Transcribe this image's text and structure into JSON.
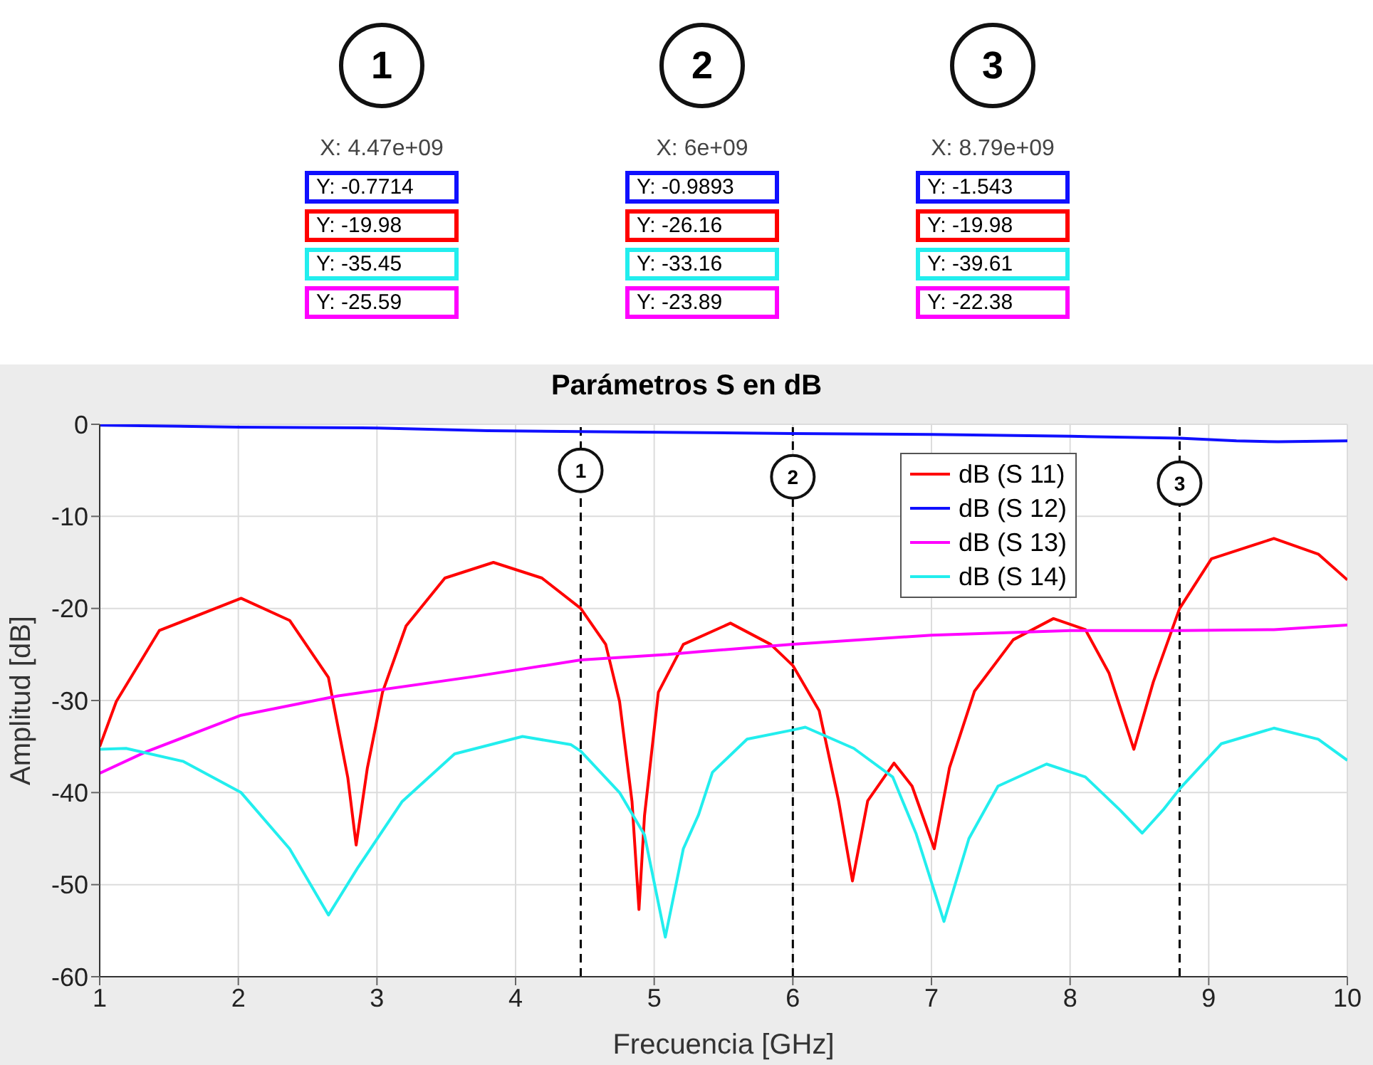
{
  "chart_data": {
    "type": "line",
    "title": "Parámetros S en dB",
    "xlabel": "Frecuencia [GHz]",
    "ylabel": "Amplitud [dB]",
    "xlim": [
      1,
      10
    ],
    "xticks": [
      1,
      2,
      3,
      4,
      5,
      6,
      7,
      8,
      9,
      10
    ],
    "ylim": [
      -60,
      0
    ],
    "yticks": [
      -60,
      -50,
      -40,
      -30,
      -20,
      -10,
      0
    ],
    "grid": true,
    "legend": "top right",
    "marker": "none",
    "line_style": "solid",
    "ref_lines": [
      {
        "axis": "x",
        "value": 4.47,
        "color": "#000000",
        "line_style": "dashed"
      },
      {
        "axis": "x",
        "value": 6,
        "color": "#000000",
        "line_style": "dashed"
      },
      {
        "axis": "x",
        "value": 8.79,
        "color": "#000000",
        "line_style": "dashed"
      }
    ],
    "annotations": [
      {
        "text": "1",
        "x": 4.47,
        "y": -5
      },
      {
        "text": "2",
        "x": 6,
        "y": -5.7
      },
      {
        "text": "3",
        "x": 8.79,
        "y": -6.4
      },
      "1",
      "X: 4.47e+09",
      "Y: -0.7714",
      "Y: -19.98",
      "Y: -35.45",
      "Y: -25.59",
      "2",
      "X: 6e+09",
      "Y: -0.9893",
      "Y: -26.16",
      "Y: -33.16",
      "Y: -23.89",
      "3",
      "X: 8.79e+09",
      "Y: -1.543",
      "Y: -19.98",
      "Y: -39.61",
      "Y: -22.38"
    ],
    "series": [
      {
        "name": "dB (S 11)",
        "color": "#ff0000",
        "x": [
          1,
          1.12,
          1.43,
          2.02,
          2.37,
          2.65,
          2.79,
          2.85,
          2.93,
          3.04,
          3.21,
          3.49,
          3.84,
          4.19,
          4.47,
          4.65,
          4.75,
          4.84,
          4.89,
          4.93,
          5.03,
          5.21,
          5.55,
          5.84,
          6,
          6.19,
          6.33,
          6.43,
          6.54,
          6.73,
          6.86,
          7.02,
          7.13,
          7.31,
          7.59,
          7.88,
          8.11,
          8.28,
          8.46,
          8.6,
          8.79,
          9.02,
          9.47,
          9.79,
          10
        ],
        "values": [
          -35,
          -30.1,
          -22.4,
          -18.9,
          -21.3,
          -27.5,
          -38.4,
          -45.7,
          -37.4,
          -29.1,
          -21.9,
          -16.7,
          -15,
          -16.7,
          -20,
          -23.9,
          -30.1,
          -41,
          -52.7,
          -42.5,
          -29.1,
          -23.9,
          -21.6,
          -23.9,
          -26.2,
          -31.1,
          -40.9,
          -49.6,
          -40.9,
          -36.8,
          -39.3,
          -46.1,
          -37.3,
          -29,
          -23.4,
          -21.1,
          -22.3,
          -27,
          -35.3,
          -28,
          -20,
          -14.6,
          -12.4,
          -14.1,
          -16.9
        ]
      },
      {
        "name": "dB (S 12)",
        "color": "#1010ff",
        "x": [
          1,
          2,
          3,
          3.8,
          4.47,
          6,
          7,
          8,
          8.79,
          9.2,
          9.5,
          10
        ],
        "values": [
          -0.1,
          -0.3,
          -0.4,
          -0.7,
          -0.8,
          -1,
          -1.1,
          -1.3,
          -1.5,
          -1.8,
          -1.9,
          -1.8
        ]
      },
      {
        "name": "dB (S 13)",
        "color": "#ff00ff",
        "x": [
          1,
          1.33,
          2.02,
          2.72,
          3.7,
          4.47,
          5.1,
          5.32,
          6,
          7,
          8,
          8.79,
          9.47,
          10
        ],
        "values": [
          -37.9,
          -35.6,
          -31.6,
          -29.5,
          -27.4,
          -25.6,
          -25,
          -24.7,
          -23.9,
          -22.9,
          -22.4,
          -22.4,
          -22.3,
          -21.8
        ]
      },
      {
        "name": "dB (S 14)",
        "color": "#22eeee",
        "x": [
          1,
          1.19,
          1.6,
          2.02,
          2.37,
          2.65,
          2.86,
          3.18,
          3.56,
          4.05,
          4.4,
          4.47,
          4.75,
          4.93,
          5.08,
          5.21,
          5.32,
          5.42,
          5.67,
          6,
          6.09,
          6.44,
          6.72,
          6.89,
          7.09,
          7.27,
          7.48,
          7.83,
          8.11,
          8.36,
          8.52,
          8.67,
          8.79,
          9.09,
          9.47,
          9.79,
          10
        ],
        "values": [
          -35.3,
          -35.2,
          -36.6,
          -40,
          -46.1,
          -53.3,
          -48.2,
          -41,
          -35.8,
          -33.9,
          -34.8,
          -35.5,
          -40,
          -44.6,
          -55.7,
          -46.1,
          -42.4,
          -37.8,
          -34.2,
          -33.2,
          -32.9,
          -35.2,
          -38.3,
          -44.5,
          -54,
          -45,
          -39.3,
          -36.9,
          -38.3,
          -41.9,
          -44.4,
          -41.9,
          -39.6,
          -34.7,
          -33,
          -34.2,
          -36.5
        ]
      }
    ]
  }
}
